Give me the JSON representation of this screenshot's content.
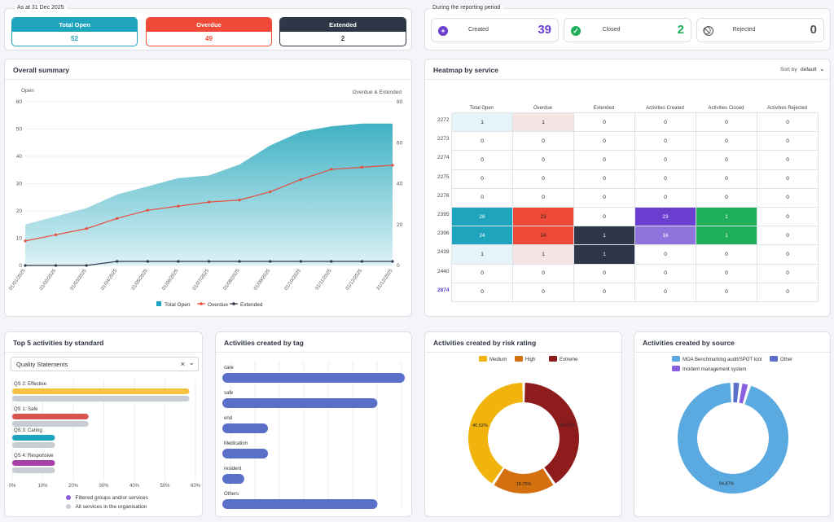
{
  "header": {
    "as_at": "As at 31 Dec 2025",
    "period": "During the reporting period"
  },
  "kpis": [
    {
      "label": "Total Open",
      "value": "52",
      "color": "#1ea5bd"
    },
    {
      "label": "Overdue",
      "value": "49",
      "color": "#ee4a37"
    },
    {
      "label": "Extended",
      "value": "2",
      "color": "#2d3748"
    }
  ],
  "period_stats": [
    {
      "label": "Created",
      "value": "39",
      "icon": "plus-circle-icon",
      "color": "#6a3fcf"
    },
    {
      "label": "Closed",
      "value": "2",
      "icon": "check-circle-icon",
      "color": "#1fae5a"
    },
    {
      "label": "Rejected",
      "value": "0",
      "icon": "ban-icon",
      "color": "#555555"
    }
  ],
  "summary": {
    "title": "Overall summary",
    "left_axis_label": "Open",
    "right_axis_label": "Overdue & Extended",
    "legend": [
      "Total Open",
      "Overdue",
      "Extended"
    ]
  },
  "chart_data": [
    {
      "type": "line",
      "title": "Overall summary",
      "x": [
        "01/01/2025",
        "01/02/2025",
        "01/03/2025",
        "01/04/2025",
        "01/05/2025",
        "01/06/2025",
        "01/07/2025",
        "01/08/2025",
        "01/09/2025",
        "01/10/2025",
        "01/11/2025",
        "01/12/2025",
        "31/12/2025"
      ],
      "ylim_left": [
        0,
        60
      ],
      "ylim_right": [
        0,
        80
      ],
      "series": [
        {
          "name": "Total Open",
          "axis": "left",
          "kind": "area",
          "color": "#1ea5bd",
          "values": [
            15,
            18,
            21,
            26,
            29,
            32,
            33,
            37,
            44,
            49,
            51,
            52,
            52
          ]
        },
        {
          "name": "Overdue",
          "axis": "right",
          "kind": "line",
          "color": "#e74c3c",
          "values": [
            12,
            15,
            18,
            23,
            27,
            29,
            31,
            32,
            36,
            42,
            47,
            48,
            49
          ]
        },
        {
          "name": "Extended",
          "axis": "right",
          "kind": "line",
          "color": "#2d3748",
          "values": [
            0,
            0,
            0,
            2,
            2,
            2,
            2,
            2,
            2,
            2,
            2,
            2,
            2
          ]
        }
      ],
      "left_ticks": [
        "0",
        "10",
        "20",
        "30",
        "40",
        "50",
        "60"
      ],
      "right_ticks": [
        "0",
        "20",
        "40",
        "60",
        "80"
      ]
    },
    {
      "type": "bar",
      "title": "Top 5 activities by standard",
      "orientation": "horizontal",
      "categories": [
        "QS 2: Effective",
        "QS 1: Safe",
        "QS 3: Caring",
        "QS 4: Responsive"
      ],
      "series": [
        {
          "name": "Filtered groups and/or services",
          "values": [
            58,
            25,
            14,
            14
          ]
        },
        {
          "name": "All services in the organisation",
          "values": [
            58,
            25,
            14,
            14
          ]
        }
      ],
      "xticks": [
        "0%",
        "10%",
        "20%",
        "30%",
        "40%",
        "50%",
        "60%"
      ],
      "xlim": [
        0,
        60
      ]
    },
    {
      "type": "bar",
      "title": "Activities created by tag",
      "orientation": "horizontal",
      "categories": [
        "care",
        "safe",
        "end",
        "Medication",
        "resident",
        "Others"
      ],
      "values": [
        10,
        8.5,
        2.5,
        2.5,
        1.2,
        8.5
      ]
    },
    {
      "type": "pie",
      "title": "Activities created by risk rating",
      "labels": [
        "Medium",
        "High",
        "Extreme"
      ],
      "values": [
        40.62,
        18.75,
        40.63
      ],
      "colors": [
        "#f0b40c",
        "#d4700f",
        "#8e1c1c"
      ],
      "data_labels": [
        "40.62%",
        "18.75%",
        "40.63%"
      ]
    },
    {
      "type": "pie",
      "title": "Activities created by source",
      "labels": [
        "MOA Benchmarking audit/SPOT tool",
        "Other",
        "Incident management system"
      ],
      "values": [
        94.87,
        2.56,
        2.57
      ],
      "colors": [
        "#5aa9e0",
        "#5a6fc8",
        "#8a5ee0"
      ],
      "data_labels": [
        "94.87%"
      ]
    }
  ],
  "heatmap": {
    "title": "Heatmap by service",
    "sort_label": "Sort by",
    "sort_value": "default",
    "columns": [
      "Total Open",
      "Overdue",
      "Extended",
      "Activities Created",
      "Activities Closed",
      "Activities Rejected"
    ],
    "rows": [
      {
        "id": "2272",
        "values": [
          "1",
          "1",
          "0",
          "0",
          "0",
          "0"
        ],
        "colors": [
          "#e6f3f8",
          "#f6e3e3",
          "",
          "",
          "",
          ""
        ]
      },
      {
        "id": "2273",
        "values": [
          "0",
          "0",
          "0",
          "0",
          "0",
          "0"
        ],
        "colors": [
          "",
          "",
          "",
          "",
          "",
          ""
        ]
      },
      {
        "id": "2274",
        "values": [
          "0",
          "0",
          "0",
          "0",
          "0",
          "0"
        ],
        "colors": [
          "",
          "",
          "",
          "",
          "",
          ""
        ]
      },
      {
        "id": "2275",
        "values": [
          "0",
          "0",
          "0",
          "0",
          "0",
          "0"
        ],
        "colors": [
          "",
          "",
          "",
          "",
          "",
          ""
        ]
      },
      {
        "id": "2276",
        "values": [
          "0",
          "0",
          "0",
          "0",
          "0",
          "0"
        ],
        "colors": [
          "",
          "",
          "",
          "",
          "",
          ""
        ]
      },
      {
        "id": "2395",
        "values": [
          "26",
          "23",
          "0",
          "23",
          "1",
          "0"
        ],
        "colors": [
          "#1ea5bd",
          "#ee4a37",
          "",
          "#6a3fcf",
          "#1fae5a",
          ""
        ]
      },
      {
        "id": "2396",
        "values": [
          "24",
          "24",
          "1",
          "16",
          "1",
          "0"
        ],
        "colors": [
          "#1ea5bd",
          "#ee4a37",
          "#2d3748",
          "#8f73dc",
          "#1fae5a",
          ""
        ]
      },
      {
        "id": "2439",
        "values": [
          "1",
          "1",
          "1",
          "0",
          "0",
          "0"
        ],
        "colors": [
          "#e6f3f8",
          "#f6e3e3",
          "#2d3748",
          "",
          "",
          ""
        ]
      },
      {
        "id": "2440",
        "values": [
          "0",
          "0",
          "0",
          "0",
          "0",
          "0"
        ],
        "colors": [
          "",
          "",
          "",
          "",
          "",
          ""
        ]
      },
      {
        "id": "2874",
        "values": [
          "0",
          "0",
          "0",
          "0",
          "0",
          "0"
        ],
        "colors": [
          "",
          "",
          "",
          "",
          "",
          ""
        ]
      }
    ]
  },
  "top5": {
    "title": "Top 5 activities by standard",
    "select_value": "Quality Statements",
    "legend": [
      "Filtered groups and/or services",
      "All services in the organisation"
    ]
  },
  "tags": {
    "title": "Activities created by tag"
  },
  "risk": {
    "title": "Activities created by risk rating"
  },
  "source": {
    "title": "Activities created by source"
  }
}
